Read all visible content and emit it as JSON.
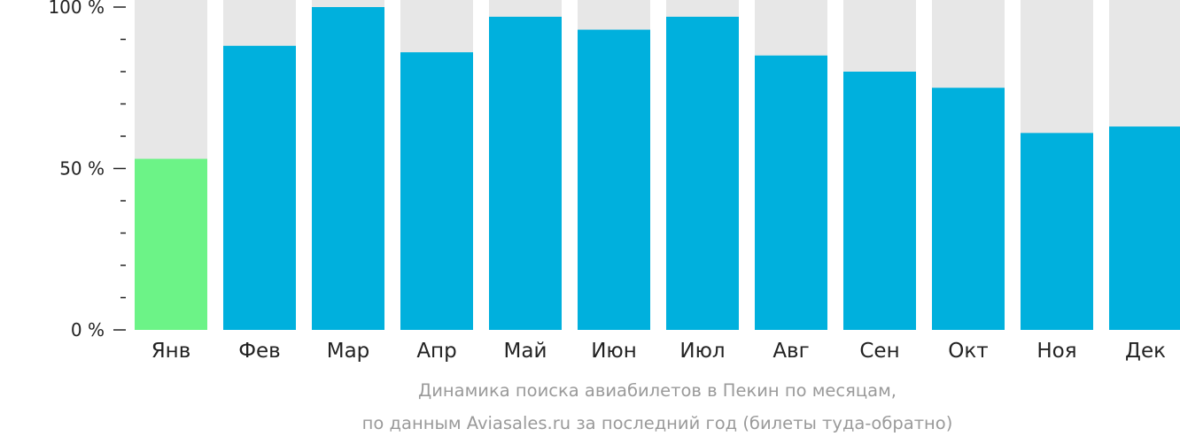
{
  "chart_data": {
    "type": "bar",
    "title": "Динамика поиска авиабилетов в Пекин по месяцам,",
    "subtitle": "по данным Aviasales.ru за последний год (билеты туда-обратно)",
    "categories": [
      "Янв",
      "Фев",
      "Мар",
      "Апр",
      "Май",
      "Июн",
      "Июл",
      "Авг",
      "Сен",
      "Окт",
      "Ноя",
      "Дек"
    ],
    "values": [
      53,
      88,
      100,
      86,
      97,
      93,
      97,
      85,
      80,
      75,
      61,
      63
    ],
    "ylim": [
      0,
      100
    ],
    "yticks": [
      {
        "value": 0,
        "label": "0 %"
      },
      {
        "value": 50,
        "label": "50 %"
      },
      {
        "value": 100,
        "label": "100 %"
      }
    ],
    "minor_tick_step": 10,
    "highlight_index": 0,
    "colors": {
      "bar": "#00b0dd",
      "highlight": "#6cf387",
      "background_bar": "#e7e7e7",
      "axis": "#222222"
    }
  }
}
